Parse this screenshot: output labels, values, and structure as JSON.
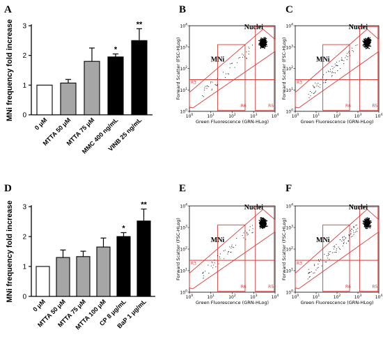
{
  "panel_letters": {
    "A": "A",
    "B": "B",
    "C": "C",
    "D": "D",
    "E": "E",
    "F": "F"
  },
  "chart_data": [
    {
      "type": "bar",
      "panel": "A",
      "ylabel": "MNi frequency fold increase",
      "ylim": [
        0,
        3
      ],
      "yticks": [
        "0",
        "1",
        "2",
        "3"
      ],
      "categories": [
        "0 μM",
        "MTTA 50 μM",
        "MTTA 75 μM",
        "MMC 400 ng/mL",
        "VINB 25 ng/mL"
      ],
      "values": [
        1.0,
        1.07,
        1.8,
        1.95,
        2.5
      ],
      "errors": [
        0,
        0.12,
        0.45,
        0.1,
        0.4
      ],
      "significance": [
        "",
        "",
        "",
        "*",
        "**"
      ],
      "bar_fill": [
        "#ffffff",
        "#a6a6a6",
        "#a6a6a6",
        "#000000",
        "#000000"
      ]
    },
    {
      "type": "bar",
      "panel": "D",
      "ylabel": "MNi frequency fold increase",
      "ylim": [
        0,
        3
      ],
      "yticks": [
        "0",
        "1",
        "2",
        "3"
      ],
      "categories": [
        "0 μM",
        "MTTA 50 μM",
        "MTTA 75 μM",
        "MTTA 100 μM",
        "CP 8 μg/mL",
        "BaP 1 μg/mL"
      ],
      "values": [
        1.0,
        1.3,
        1.33,
        1.65,
        2.0,
        2.52
      ],
      "errors": [
        0,
        0.25,
        0.18,
        0.3,
        0.13,
        0.4
      ],
      "significance": [
        "",
        "",
        "",
        "",
        "*",
        "**"
      ],
      "bar_fill": [
        "#ffffff",
        "#a6a6a6",
        "#a6a6a6",
        "#a6a6a6",
        "#000000",
        "#000000"
      ]
    }
  ],
  "flow_plots": {
    "common": {
      "ylabel": "Forward Scatter (FSC-HLog)",
      "xlabel": "Green Fluorescence (GRN-HLog)",
      "ticks": [
        "10",
        "10",
        "10",
        "10",
        "10"
      ],
      "exps": [
        "0",
        "1",
        "2",
        "3",
        "4"
      ],
      "gates": [
        "R3",
        "R6",
        "R5"
      ],
      "label_mni": "MNi",
      "label_nuclei": "Nuclei"
    },
    "panels": [
      {
        "id": "B",
        "mni_density": 0.5
      },
      {
        "id": "C",
        "mni_density": 0.8
      },
      {
        "id": "E",
        "mni_density": 0.6
      },
      {
        "id": "F",
        "mni_density": 1.0
      }
    ]
  }
}
